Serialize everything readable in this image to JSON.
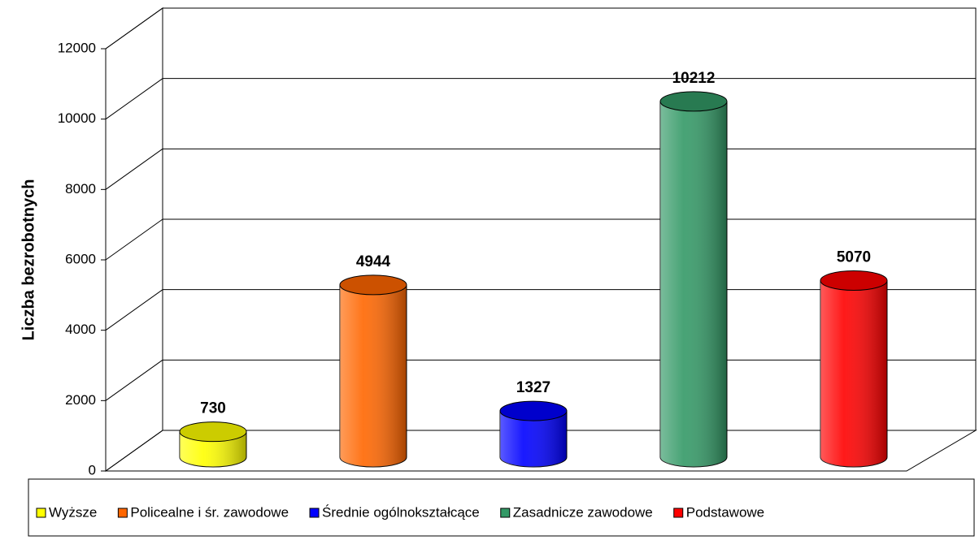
{
  "chart_data": {
    "type": "bar3d",
    "y_label": "Liczba bezrobotnych",
    "series": [
      {
        "name": "Wyższe",
        "color": "#ffff00",
        "values": [
          730
        ]
      },
      {
        "name": "Policealne i śr. zawodowe",
        "color": "#ff6600",
        "values": [
          4944
        ]
      },
      {
        "name": "Średnie ogólnokształcące",
        "color": "#0000ff",
        "values": [
          1327
        ]
      },
      {
        "name": "Zasadnicze zawodowe",
        "color": "#339966",
        "values": [
          10212
        ]
      },
      {
        "name": "Podstawowe",
        "color": "#ff0000",
        "values": [
          5070
        ]
      }
    ],
    "ylim": [
      0,
      12000
    ],
    "yticks": [
      0,
      2000,
      4000,
      6000,
      8000,
      10000,
      12000
    ],
    "grid": true
  }
}
